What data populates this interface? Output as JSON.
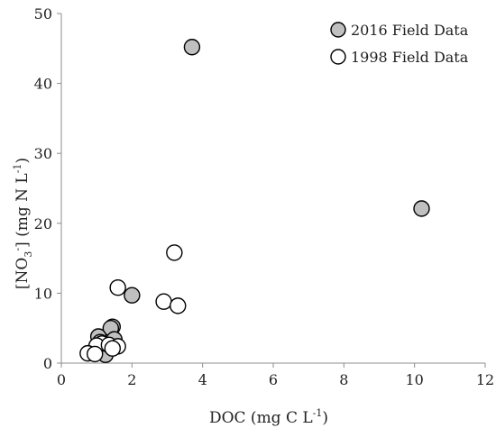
{
  "chart_data": {
    "type": "scatter",
    "xlabel": {
      "prefix": "DOC (mg C L",
      "sup": "-1",
      "suffix": ")"
    },
    "ylabel": {
      "prefix": "[NO",
      "sub": "3",
      "sup1": "-",
      "middle": "] (mg N L",
      "sup2": "-1",
      "suffix": ")"
    },
    "xlim": [
      0,
      12
    ],
    "ylim": [
      0,
      50
    ],
    "x_ticks": [
      "0",
      "2",
      "4",
      "6",
      "8",
      "10",
      "12"
    ],
    "y_ticks": [
      "0",
      "10",
      "20",
      "30",
      "40",
      "50"
    ],
    "grid": false,
    "legend_position": "top-right",
    "series": [
      {
        "name": "2016 Field Data",
        "marker_fill": "#c0c0c0",
        "marker_stroke": "#000000",
        "points": [
          {
            "x": 3.7,
            "y": 45.2
          },
          {
            "x": 10.2,
            "y": 22.1
          },
          {
            "x": 2.0,
            "y": 9.7
          },
          {
            "x": 1.45,
            "y": 5.2
          },
          {
            "x": 1.4,
            "y": 5.0
          },
          {
            "x": 1.05,
            "y": 3.8
          },
          {
            "x": 1.1,
            "y": 3.0
          },
          {
            "x": 1.5,
            "y": 3.4
          },
          {
            "x": 1.3,
            "y": 2.3
          },
          {
            "x": 1.25,
            "y": 1.2
          },
          {
            "x": 0.85,
            "y": 1.5
          }
        ]
      },
      {
        "name": "1998 Field Data",
        "marker_fill": "#ffffff",
        "marker_stroke": "#000000",
        "points": [
          {
            "x": 3.2,
            "y": 15.8
          },
          {
            "x": 1.6,
            "y": 10.8
          },
          {
            "x": 2.9,
            "y": 8.8
          },
          {
            "x": 3.3,
            "y": 8.2
          },
          {
            "x": 1.15,
            "y": 2.8
          },
          {
            "x": 1.0,
            "y": 2.5
          },
          {
            "x": 1.35,
            "y": 2.6
          },
          {
            "x": 1.6,
            "y": 2.4
          },
          {
            "x": 1.45,
            "y": 2.1
          },
          {
            "x": 0.75,
            "y": 1.4
          },
          {
            "x": 0.95,
            "y": 1.3
          }
        ]
      }
    ]
  }
}
